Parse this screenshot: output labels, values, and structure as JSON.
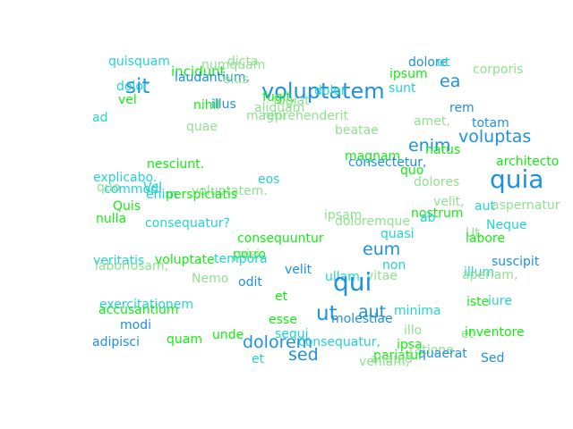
{
  "words": [
    {
      "text": "quisquam",
      "color": "#22d3d3"
    },
    {
      "text": "incidunt",
      "color": "#11ee11"
    },
    {
      "text": "numquam",
      "color": "#90e090"
    },
    {
      "text": "dicta",
      "color": "#90e090"
    },
    {
      "text": "laudantium,",
      "color": "#1e90e0"
    },
    {
      "text": "eius",
      "color": "#90e090"
    },
    {
      "text": "dolore",
      "color": "#1e90e0"
    },
    {
      "text": "ut",
      "color": "#22d3d3"
    },
    {
      "text": "ipsum",
      "color": "#11ee11"
    },
    {
      "text": "corporis",
      "color": "#90e090"
    },
    {
      "text": "ea",
      "color": "#1e90e0"
    },
    {
      "text": "sit",
      "color": "#1e90e0"
    },
    {
      "text": "dolor",
      "color": "#22d3d3"
    },
    {
      "text": "voluptatem",
      "color": "#1e90e0"
    },
    {
      "text": "fugit,",
      "color": "#11ee11"
    },
    {
      "text": "fugiat",
      "color": "#90e090"
    },
    {
      "text": "dolor",
      "color": "#22d3d3"
    },
    {
      "text": "sunt",
      "color": "#22d3d3"
    },
    {
      "text": "vel",
      "color": "#11ee11"
    },
    {
      "text": "nihil",
      "color": "#11ee11"
    },
    {
      "text": "illus",
      "color": "#1e90e0"
    },
    {
      "text": "aliquam",
      "color": "#90e090"
    },
    {
      "text": "rem",
      "color": "#1e90e0"
    },
    {
      "text": "ad",
      "color": "#22d3d3"
    },
    {
      "text": "magni",
      "color": "#90e090"
    },
    {
      "text": "reprehenderit",
      "color": "#90e090"
    },
    {
      "text": "amet,",
      "color": "#90e090"
    },
    {
      "text": "totam",
      "color": "#1e90e0"
    },
    {
      "text": "quae",
      "color": "#90e090"
    },
    {
      "text": "beatae",
      "color": "#90e090"
    },
    {
      "text": "voluptas",
      "color": "#1e90e0"
    },
    {
      "text": "enim",
      "color": "#1e90e0"
    },
    {
      "text": "natus",
      "color": "#11ee11"
    },
    {
      "text": "magnam",
      "color": "#11ee11"
    },
    {
      "text": "consectetur,",
      "color": "#1e90e0"
    },
    {
      "text": "architecto",
      "color": "#11ee11"
    },
    {
      "text": "nesciunt.",
      "color": "#11ee11"
    },
    {
      "text": "quo",
      "color": "#11ee11"
    },
    {
      "text": "quia",
      "color": "#1e90e0"
    },
    {
      "text": "explicabo.",
      "color": "#22d3d3"
    },
    {
      "text": "eos",
      "color": "#22d3d3"
    },
    {
      "text": "dolores",
      "color": "#90e090"
    },
    {
      "text": "quo",
      "color": "#90e090"
    },
    {
      "text": "commodi",
      "color": "#22d3d3"
    },
    {
      "text": "Vel",
      "color": "#22d3d3"
    },
    {
      "text": "voluptatem.",
      "color": "#90e090"
    },
    {
      "text": "velit,",
      "color": "#90e090"
    },
    {
      "text": "enim",
      "color": "#22d3d3"
    },
    {
      "text": "perspiciatis",
      "color": "#11ee11"
    },
    {
      "text": "aut",
      "color": "#22d3d3"
    },
    {
      "text": "aspernatur",
      "color": "#90e090"
    },
    {
      "text": "Quis",
      "color": "#11ee11"
    },
    {
      "text": "nostrum",
      "color": "#11ee11"
    },
    {
      "text": "ipsam",
      "color": "#90e090"
    },
    {
      "text": "nulla",
      "color": "#11ee11"
    },
    {
      "text": "ab",
      "color": "#22d3d3"
    },
    {
      "text": "consequatur?",
      "color": "#22d3d3"
    },
    {
      "text": "doloremque",
      "color": "#90e090"
    },
    {
      "text": "Neque",
      "color": "#22d3d3"
    },
    {
      "text": "quasi",
      "color": "#22d3d3"
    },
    {
      "text": "Ut",
      "color": "#90e090"
    },
    {
      "text": "consequuntur",
      "color": "#11ee11"
    },
    {
      "text": "labore",
      "color": "#11ee11"
    },
    {
      "text": "eum",
      "color": "#1e90e0"
    },
    {
      "text": "porro",
      "color": "#11ee11"
    },
    {
      "text": "nisi",
      "color": "#90e090"
    },
    {
      "text": "veritatis",
      "color": "#22d3d3"
    },
    {
      "text": "voluptate",
      "color": "#11ee11"
    },
    {
      "text": "tempora",
      "color": "#22d3d3"
    },
    {
      "text": "laboriosam,",
      "color": "#90e090"
    },
    {
      "text": "suscipit",
      "color": "#1e90e0"
    },
    {
      "text": "non",
      "color": "#22d3d3"
    },
    {
      "text": "velit",
      "color": "#1e90e0"
    },
    {
      "text": "illum",
      "color": "#22d3d3"
    },
    {
      "text": "ullam",
      "color": "#22d3d3"
    },
    {
      "text": "vitae",
      "color": "#90e090"
    },
    {
      "text": "aperiam,",
      "color": "#90e090"
    },
    {
      "text": "Nemo",
      "color": "#90e090"
    },
    {
      "text": "odit",
      "color": "#1e90e0"
    },
    {
      "text": "qui",
      "color": "#1e90e0"
    },
    {
      "text": "et",
      "color": "#11ee11"
    },
    {
      "text": "iste",
      "color": "#11ee11"
    },
    {
      "text": "iure",
      "color": "#22d3d3"
    },
    {
      "text": "exercitationem",
      "color": "#22d3d3"
    },
    {
      "text": "accusantium",
      "color": "#11ee11"
    },
    {
      "text": "minima",
      "color": "#22d3d3"
    },
    {
      "text": "ut",
      "color": "#1e90e0"
    },
    {
      "text": "aut",
      "color": "#1e90e0"
    },
    {
      "text": "modi",
      "color": "#1e90e0"
    },
    {
      "text": "esse",
      "color": "#11ee11"
    },
    {
      "text": "molestiae",
      "color": "#1e90e0"
    },
    {
      "text": "illo",
      "color": "#90e090"
    },
    {
      "text": "et",
      "color": "#90e090"
    },
    {
      "text": "inventore",
      "color": "#11ee11"
    },
    {
      "text": "unde",
      "color": "#11ee11"
    },
    {
      "text": "sequi",
      "color": "#22d3d3"
    },
    {
      "text": "adipisci",
      "color": "#1e90e0"
    },
    {
      "text": "quam",
      "color": "#11ee11"
    },
    {
      "text": "dolorem",
      "color": "#1e90e0"
    },
    {
      "text": "consequatur,",
      "color": "#22d3d3"
    },
    {
      "text": "ipsa",
      "color": "#11ee11"
    },
    {
      "text": "ratione",
      "color": "#90e090"
    },
    {
      "text": "quaerat",
      "color": "#1e90e0"
    },
    {
      "text": "pariatur",
      "color": "#11ee11"
    },
    {
      "text": "aliquid",
      "color": "#90e090"
    },
    {
      "text": "sed",
      "color": "#1e90e0"
    },
    {
      "text": "Sed",
      "color": "#1e90e0"
    },
    {
      "text": "et",
      "color": "#22d3d3"
    },
    {
      "text": "veniam,",
      "color": "#90e090"
    }
  ]
}
